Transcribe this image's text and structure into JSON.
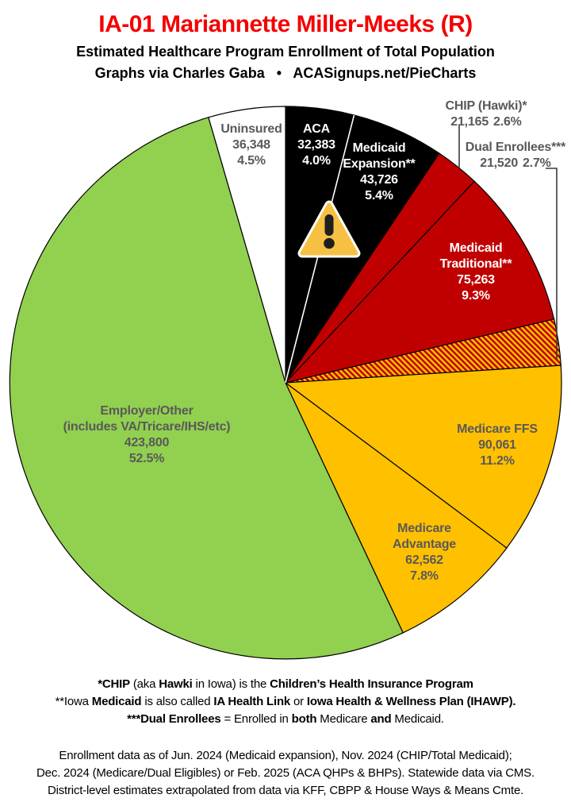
{
  "header": {
    "title": "IA-01 Mariannette Miller-Meeks (R)",
    "subtitle": "Estimated Healthcare Program Enrollment of Total Population",
    "credit": "Graphs via Charles Gaba   •   ACASignups.net/PieCharts"
  },
  "chart_data": {
    "type": "pie",
    "title": "IA-01 Estimated Healthcare Program Enrollment of Total Population",
    "start_angle_deg": 0,
    "direction": "clockwise",
    "hatch_colors": [
      "#C00000",
      "#FFC000"
    ],
    "slices": [
      {
        "label": "ACA",
        "label_lines": [
          "ACA"
        ],
        "value_num": 32383,
        "value": "32,383",
        "pct_num": 4.0,
        "pct": "4.0%",
        "color": "#000000"
      },
      {
        "label": "Medicaid Expansion**",
        "label_lines": [
          "Medicaid",
          "Expansion**"
        ],
        "value_num": 43726,
        "value": "43,726",
        "pct_num": 5.4,
        "pct": "5.4%",
        "color": "#000000"
      },
      {
        "label": "CHIP (Hawki)*",
        "label_lines": [
          "CHIP (Hawki)*"
        ],
        "value_num": 21165,
        "value": "21,165",
        "pct_num": 2.6,
        "pct": "2.6%",
        "color": "#C00000"
      },
      {
        "label": "Medicaid Traditional**",
        "label_lines": [
          "Medicaid",
          "Traditional**"
        ],
        "value_num": 75263,
        "value": "75,263",
        "pct_num": 9.3,
        "pct": "9.3%",
        "color": "#C00000"
      },
      {
        "label": "Dual Enrollees***",
        "label_lines": [
          "Dual Enrollees***"
        ],
        "value_num": 21520,
        "value": "21,520",
        "pct_num": 2.7,
        "pct": "2.7%",
        "color": "hatch"
      },
      {
        "label": "Medicare FFS",
        "label_lines": [
          "Medicare FFS"
        ],
        "value_num": 90061,
        "value": "90,061",
        "pct_num": 11.2,
        "pct": "11.2%",
        "color": "#FFC000"
      },
      {
        "label": "Medicare Advantage",
        "label_lines": [
          "Medicare",
          "Advantage"
        ],
        "value_num": 62562,
        "value": "62,562",
        "pct_num": 7.8,
        "pct": "7.8%",
        "color": "#FFC000"
      },
      {
        "label": "Employer/Other (includes VA/Tricare/IHS/etc)",
        "label_lines": [
          "Employer/Other",
          "(includes VA/Tricare/IHS/etc)"
        ],
        "value_num": 423800,
        "value": "423,800",
        "pct_num": 52.5,
        "pct": "52.5%",
        "color": "#92D050"
      },
      {
        "label": "Uninsured",
        "label_lines": [
          "Uninsured"
        ],
        "value_num": 36348,
        "value": "36,348",
        "pct_num": 4.5,
        "pct": "4.5%",
        "color": "#FFFFFF"
      }
    ]
  },
  "footnotes": {
    "lines": [
      {
        "segments": [
          {
            "text": "*CHIP",
            "bold": true
          },
          {
            "text": " (aka ",
            "bold": false
          },
          {
            "text": "Hawki",
            "bold": true
          },
          {
            "text": " in Iowa) is the ",
            "bold": false
          },
          {
            "text": "Children’s Health Insurance Program",
            "bold": true
          }
        ]
      },
      {
        "segments": [
          {
            "text": "**Iowa ",
            "bold": false
          },
          {
            "text": "Medicaid",
            "bold": true
          },
          {
            "text": " is also called ",
            "bold": false
          },
          {
            "text": "IA Health Link",
            "bold": true
          },
          {
            "text": " or ",
            "bold": false
          },
          {
            "text": "Iowa Health & Wellness Plan (IHAWP).",
            "bold": true
          }
        ]
      },
      {
        "segments": [
          {
            "text": "***Dual Enrollees",
            "bold": true
          },
          {
            "text": " = Enrolled in ",
            "bold": false
          },
          {
            "text": "both",
            "bold": true
          },
          {
            "text": " Medicare ",
            "bold": false
          },
          {
            "text": "and",
            "bold": true
          },
          {
            "text": " Medicaid.",
            "bold": false
          }
        ]
      }
    ]
  },
  "sources": {
    "lines": [
      "Enrollment data as of Jun. 2024 (Medicaid expansion), Nov. 2024 (CHIP/Total Medicaid);",
      "Dec. 2024 (Medicare/Dual Eligibles) or Feb. 2025 (ACA QHPs & BHPs). Statewide data via CMS.",
      "District-level estimates extrapolated from data via KFF, CBPP & House Ways & Means Cmte."
    ]
  }
}
